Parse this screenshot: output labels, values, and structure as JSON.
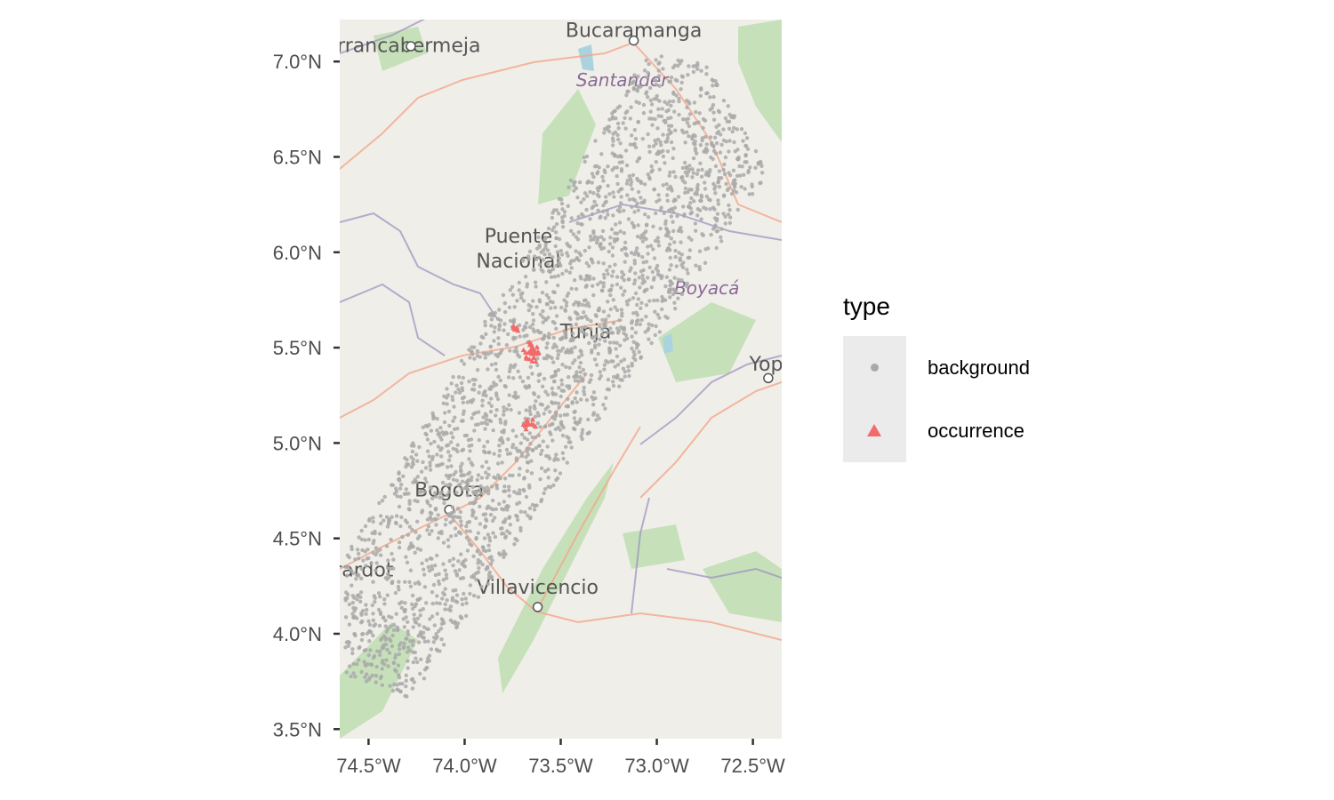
{
  "map": {
    "extent": {
      "lon": [
        -74.65,
        -72.35
      ],
      "lat": [
        3.45,
        7.22
      ]
    },
    "basemap_colors": {
      "land": "#f0eee9",
      "forest": "#b8dcaa",
      "road": "#f3a68a",
      "boundary": "#9a8fbd",
      "water": "#aad3df"
    },
    "place_labels": [
      {
        "text": "Bucaramanga",
        "lon": -73.12,
        "lat": 7.13,
        "kind": "city"
      },
      {
        "text": "rrancabermeja",
        "lon": -74.29,
        "lat": 7.05,
        "kind": "city"
      },
      {
        "text": "Santander",
        "lon": -73.18,
        "lat": 6.87,
        "kind": "region"
      },
      {
        "text": "Puente",
        "lon": -73.72,
        "lat": 6.05,
        "kind": "town"
      },
      {
        "text": "Nacional",
        "lon": -73.72,
        "lat": 5.92,
        "kind": "town"
      },
      {
        "text": "Boyacá",
        "lon": -72.74,
        "lat": 5.78,
        "kind": "region"
      },
      {
        "text": "Tunja",
        "lon": -73.37,
        "lat": 5.55,
        "kind": "town"
      },
      {
        "text": "Yopa",
        "lon": -72.4,
        "lat": 5.38,
        "kind": "town"
      },
      {
        "text": "Bogota",
        "lon": -74.08,
        "lat": 4.72,
        "kind": "city"
      },
      {
        "text": "irardot",
        "lon": -74.54,
        "lat": 4.3,
        "kind": "town"
      },
      {
        "text": "Villavicencio",
        "lon": -73.62,
        "lat": 4.21,
        "kind": "city"
      }
    ],
    "x_ticks": [
      {
        "value": -74.5,
        "label": "74.5°W"
      },
      {
        "value": -74.0,
        "label": "74.0°W"
      },
      {
        "value": -73.5,
        "label": "73.5°W"
      },
      {
        "value": -73.0,
        "label": "73.0°W"
      },
      {
        "value": -72.5,
        "label": "72.5°W"
      }
    ],
    "y_ticks": [
      {
        "value": 3.5,
        "label": "3.5°N"
      },
      {
        "value": 4.0,
        "label": "4.0°N"
      },
      {
        "value": 4.5,
        "label": "4.5°N"
      },
      {
        "value": 5.0,
        "label": "5.0°N"
      },
      {
        "value": 5.5,
        "label": "5.5°N"
      },
      {
        "value": 6.0,
        "label": "6.0°N"
      },
      {
        "value": 6.5,
        "label": "6.5°N"
      },
      {
        "value": 7.0,
        "label": "7.0°N"
      }
    ],
    "background_polygon": [
      [
        -74.62,
        3.78
      ],
      [
        -74.28,
        3.66
      ],
      [
        -72.42,
        6.42
      ],
      [
        -72.73,
        6.98
      ],
      [
        -73.05,
        7.05
      ],
      [
        -74.62,
        4.42
      ]
    ],
    "background_color": "#a9a9a9",
    "background_count": 2600,
    "occurrence_color": "#f26b6b",
    "occurrence_clusters": [
      {
        "lon": -73.65,
        "lat": 5.47,
        "spread": [
          0.04,
          0.05
        ],
        "n": 38
      },
      {
        "lon": -73.66,
        "lat": 5.1,
        "spread": [
          0.03,
          0.02
        ],
        "n": 14
      },
      {
        "lon": -73.74,
        "lat": 5.6,
        "spread": [
          0.02,
          0.02
        ],
        "n": 6
      }
    ]
  },
  "legend": {
    "title": "type",
    "items": [
      {
        "label": "background",
        "shape": "circle",
        "color": "#a9a9a9"
      },
      {
        "label": "occurrence",
        "shape": "triangle",
        "color": "#f26b6b"
      }
    ]
  }
}
